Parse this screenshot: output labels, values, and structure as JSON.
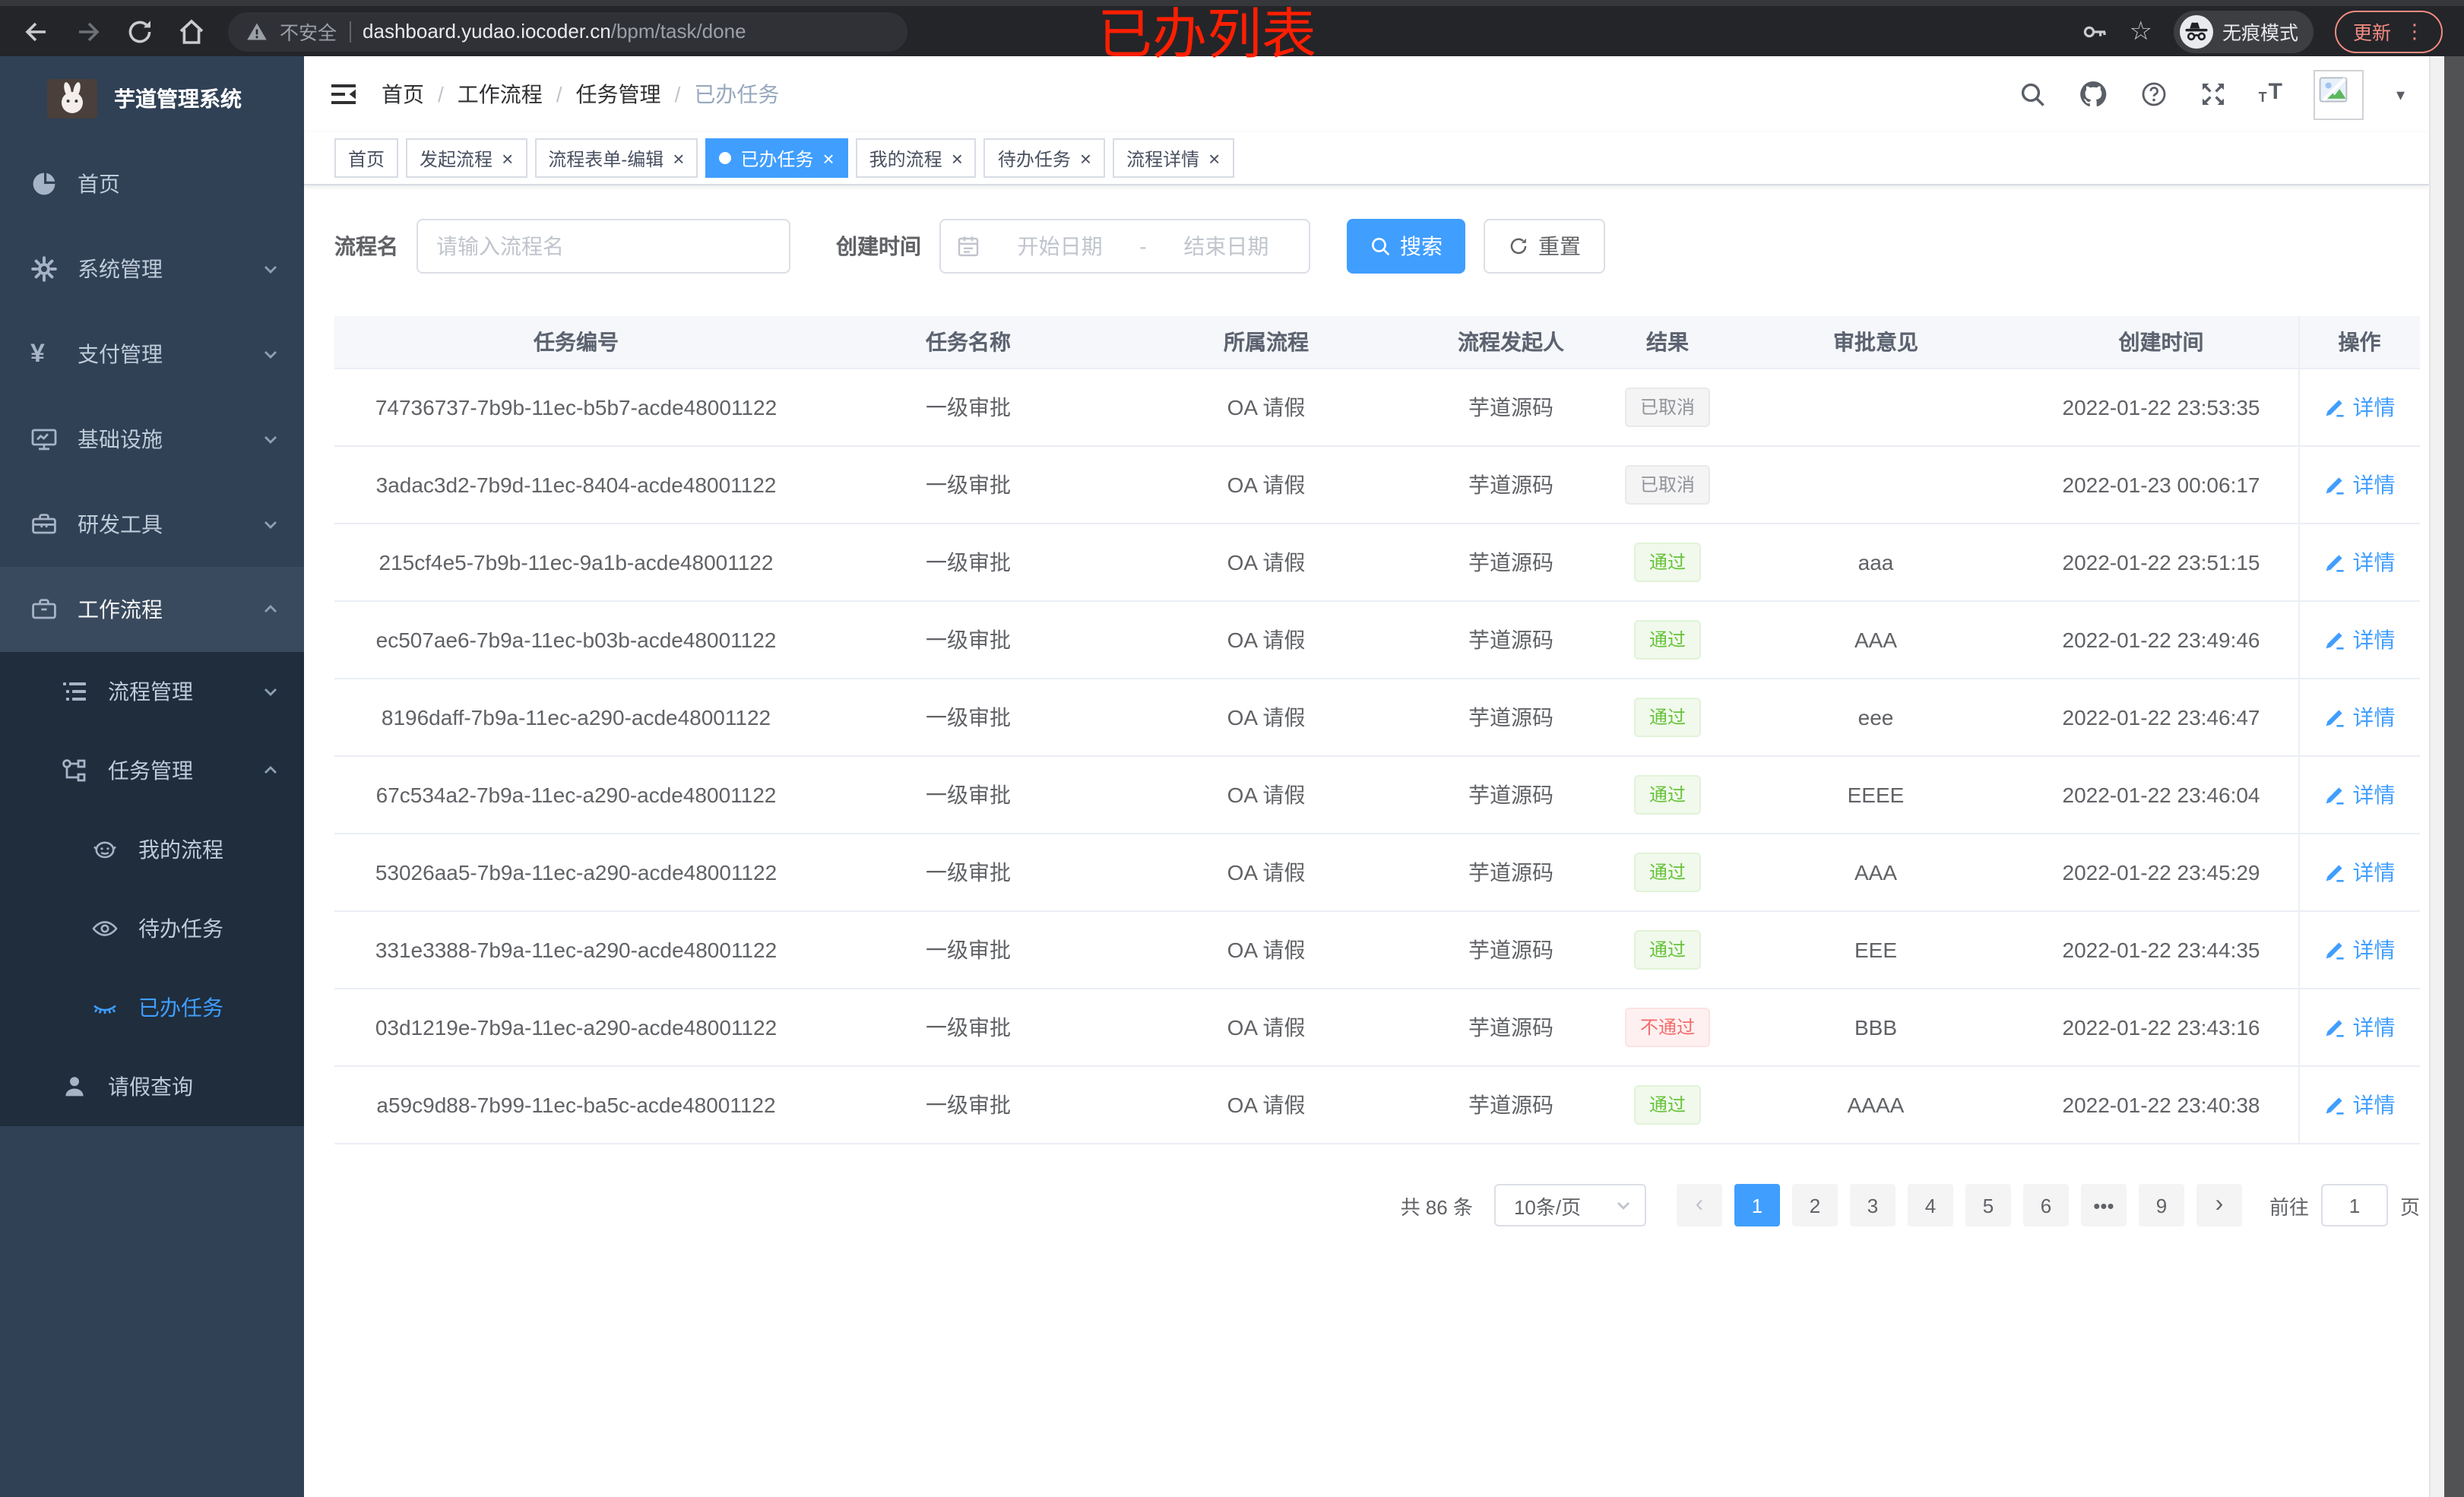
{
  "browser": {
    "security_label": "不安全",
    "url_host": "dashboard.yudao.iocoder.cn",
    "url_path": "/bpm/task/done",
    "incognito_label": "无痕模式",
    "update_label": "更新"
  },
  "annotation": "已办列表",
  "sidebar": {
    "title": "芋道管理系统",
    "menu": [
      {
        "id": "home",
        "icon": "dashboard-icon",
        "label": "首页",
        "level": 1,
        "sub": false,
        "caret": null,
        "active": false,
        "selected": false
      },
      {
        "id": "system-mgmt",
        "icon": "gear-icon",
        "label": "系统管理",
        "level": 1,
        "sub": false,
        "caret": "down",
        "active": false,
        "selected": false
      },
      {
        "id": "payment-mgmt",
        "icon": "yen-icon",
        "label": "支付管理",
        "level": 1,
        "sub": false,
        "caret": "down",
        "active": false,
        "selected": false
      },
      {
        "id": "infrastructure",
        "icon": "monitor-icon",
        "label": "基础设施",
        "level": 1,
        "sub": false,
        "caret": "down",
        "active": false,
        "selected": false
      },
      {
        "id": "dev-tools",
        "icon": "toolbox-icon",
        "label": "研发工具",
        "level": 1,
        "sub": false,
        "caret": "down",
        "active": false,
        "selected": false
      },
      {
        "id": "workflow",
        "icon": "briefcase-icon",
        "label": "工作流程",
        "level": 1,
        "sub": false,
        "caret": "up",
        "active": true,
        "selected": false
      },
      {
        "id": "process-mgmt",
        "icon": "list-tree-icon",
        "label": "流程管理",
        "level": 2,
        "sub": true,
        "caret": "down",
        "active": false,
        "selected": false
      },
      {
        "id": "task-mgmt",
        "icon": "org-icon",
        "label": "任务管理",
        "level": 2,
        "sub": true,
        "caret": "up",
        "active": false,
        "selected": false
      },
      {
        "id": "my-process",
        "icon": "face-icon",
        "label": "我的流程",
        "level": 3,
        "sub": true,
        "caret": null,
        "active": false,
        "selected": false
      },
      {
        "id": "todo-task",
        "icon": "eye-open-icon",
        "label": "待办任务",
        "level": 3,
        "sub": true,
        "caret": null,
        "active": false,
        "selected": false
      },
      {
        "id": "done-task",
        "icon": "eye-closed-icon",
        "label": "已办任务",
        "level": 3,
        "sub": true,
        "caret": null,
        "active": false,
        "selected": true
      },
      {
        "id": "leave-query",
        "icon": "user-icon",
        "label": "请假查询",
        "level": 2,
        "sub": true,
        "caret": null,
        "active": false,
        "selected": false
      }
    ]
  },
  "header": {
    "breadcrumb": [
      "首页",
      "工作流程",
      "任务管理",
      "已办任务"
    ]
  },
  "tabs": [
    {
      "label": "首页",
      "closable": false,
      "active": false
    },
    {
      "label": "发起流程",
      "closable": true,
      "active": false
    },
    {
      "label": "流程表单-编辑",
      "closable": true,
      "active": false
    },
    {
      "label": "已办任务",
      "closable": true,
      "active": true
    },
    {
      "label": "我的流程",
      "closable": true,
      "active": false
    },
    {
      "label": "待办任务",
      "closable": true,
      "active": false
    },
    {
      "label": "流程详情",
      "closable": true,
      "active": false
    }
  ],
  "filters": {
    "name_label": "流程名",
    "name_placeholder": "请输入流程名",
    "time_label": "创建时间",
    "start_placeholder": "开始日期",
    "range_separator": "-",
    "end_placeholder": "结束日期",
    "search_label": "搜索",
    "reset_label": "重置"
  },
  "table": {
    "columns": [
      "任务编号",
      "任务名称",
      "所属流程",
      "流程发起人",
      "结果",
      "审批意见",
      "创建时间",
      "操作"
    ],
    "action_label": "详情",
    "rows": [
      {
        "id": "74736737-7b9b-11ec-b5b7-acde48001122",
        "name": "一级审批",
        "process": "OA 请假",
        "starter": "芋道源码",
        "result": "已取消",
        "result_type": "info",
        "opinion": "",
        "created": "2022-01-22 23:53:35"
      },
      {
        "id": "3adac3d2-7b9d-11ec-8404-acde48001122",
        "name": "一级审批",
        "process": "OA 请假",
        "starter": "芋道源码",
        "result": "已取消",
        "result_type": "info",
        "opinion": "",
        "created": "2022-01-23 00:06:17"
      },
      {
        "id": "215cf4e5-7b9b-11ec-9a1b-acde48001122",
        "name": "一级审批",
        "process": "OA 请假",
        "starter": "芋道源码",
        "result": "通过",
        "result_type": "success",
        "opinion": "aaa",
        "created": "2022-01-22 23:51:15"
      },
      {
        "id": "ec507ae6-7b9a-11ec-b03b-acde48001122",
        "name": "一级审批",
        "process": "OA 请假",
        "starter": "芋道源码",
        "result": "通过",
        "result_type": "success",
        "opinion": "AAA",
        "created": "2022-01-22 23:49:46"
      },
      {
        "id": "8196daff-7b9a-11ec-a290-acde48001122",
        "name": "一级审批",
        "process": "OA 请假",
        "starter": "芋道源码",
        "result": "通过",
        "result_type": "success",
        "opinion": "eee",
        "created": "2022-01-22 23:46:47"
      },
      {
        "id": "67c534a2-7b9a-11ec-a290-acde48001122",
        "name": "一级审批",
        "process": "OA 请假",
        "starter": "芋道源码",
        "result": "通过",
        "result_type": "success",
        "opinion": "EEEE",
        "created": "2022-01-22 23:46:04"
      },
      {
        "id": "53026aa5-7b9a-11ec-a290-acde48001122",
        "name": "一级审批",
        "process": "OA 请假",
        "starter": "芋道源码",
        "result": "通过",
        "result_type": "success",
        "opinion": "AAA",
        "created": "2022-01-22 23:45:29"
      },
      {
        "id": "331e3388-7b9a-11ec-a290-acde48001122",
        "name": "一级审批",
        "process": "OA 请假",
        "starter": "芋道源码",
        "result": "通过",
        "result_type": "success",
        "opinion": "EEE",
        "created": "2022-01-22 23:44:35"
      },
      {
        "id": "03d1219e-7b9a-11ec-a290-acde48001122",
        "name": "一级审批",
        "process": "OA 请假",
        "starter": "芋道源码",
        "result": "不通过",
        "result_type": "danger",
        "opinion": "BBB",
        "created": "2022-01-22 23:43:16"
      },
      {
        "id": "a59c9d88-7b99-11ec-ba5c-acde48001122",
        "name": "一级审批",
        "process": "OA 请假",
        "starter": "芋道源码",
        "result": "通过",
        "result_type": "success",
        "opinion": "AAAA",
        "created": "2022-01-22 23:40:38"
      }
    ]
  },
  "pagination": {
    "total": "共 86 条",
    "page_size": "10条/页",
    "prev": "‹",
    "next": "›",
    "pages": [
      "1",
      "2",
      "3",
      "4",
      "5",
      "6",
      "•••",
      "9"
    ],
    "active_page": "1",
    "jump_prefix": "前往",
    "jump_value": "1",
    "jump_suffix": "页"
  },
  "colors": {
    "accent": "#409eff",
    "success": "#67c23a",
    "danger": "#f56c6c",
    "info": "#909399",
    "sidebar_bg": "#304156",
    "submenu_bg": "#1f2d3d",
    "annotation": "#ff1e00"
  }
}
